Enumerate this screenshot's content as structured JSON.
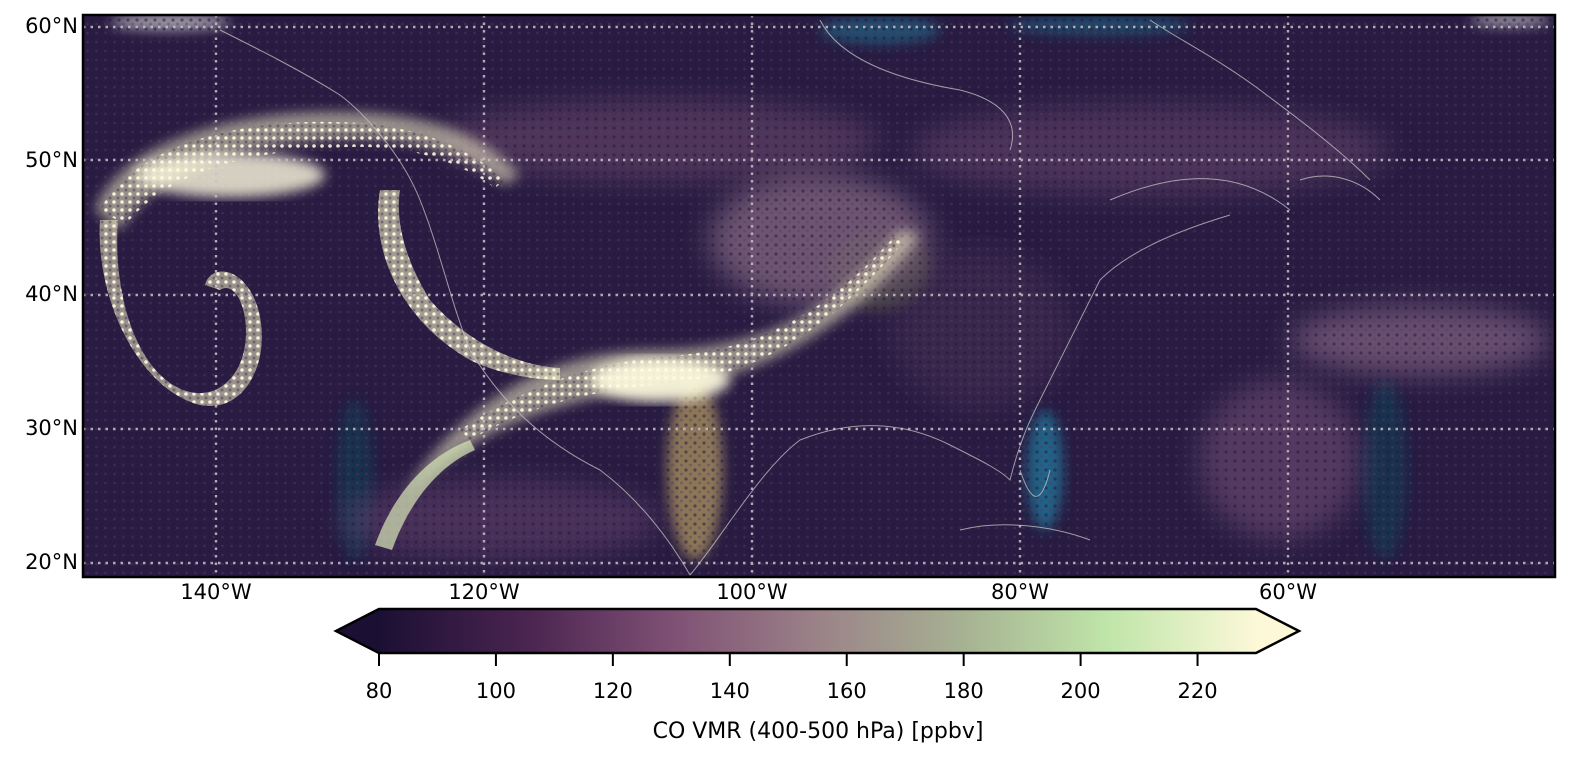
{
  "map": {
    "type": "scatter-map",
    "projection": "PlateCarree",
    "lon_range": [
      -150,
      -40
    ],
    "lat_range": [
      19,
      61
    ],
    "background": "satellite-imagery",
    "gridlines": "dotted",
    "lat_ticks": [
      {
        "value": 60,
        "label": "60°N"
      },
      {
        "value": 50,
        "label": "50°N"
      },
      {
        "value": 40,
        "label": "40°N"
      },
      {
        "value": 30,
        "label": "30°N"
      },
      {
        "value": 20,
        "label": "20°N"
      }
    ],
    "lon_ticks": [
      {
        "value": -140,
        "label": "140°W"
      },
      {
        "value": -120,
        "label": "120°W"
      },
      {
        "value": -100,
        "label": "100°W"
      },
      {
        "value": -80,
        "label": "80°W"
      },
      {
        "value": -60,
        "label": "60°W"
      }
    ]
  },
  "chart_data": {
    "type": "heatmap",
    "variable": "CO VMR (400-500 hPa) [ppbv]",
    "colormap": "cubehelix-like (dark purple → pale yellow)",
    "colors": [
      "#1c0f34",
      "#4a2550",
      "#7e4f74",
      "#9b8288",
      "#a7b393",
      "#bfe5a9",
      "#fcf8d8"
    ],
    "vmin": 80,
    "vmax": 230,
    "extend": "both",
    "colorbar_ticks": [
      80,
      100,
      120,
      140,
      160,
      180,
      200,
      220
    ],
    "plume_features": [
      {
        "description": "high CO plume core",
        "lon": -103,
        "lat": 33,
        "value": 220
      },
      {
        "description": "high CO arc offshore",
        "lon": -138,
        "lat": 50,
        "value": 220
      },
      {
        "description": "recirculating eddy",
        "lon": -142,
        "lat": 37,
        "value": 215
      },
      {
        "description": "elevated band",
        "lon": -93,
        "lat": 40,
        "value": 140
      },
      {
        "description": "elevated band east Atlantic",
        "lon": -50,
        "lat": 27,
        "value": 130
      }
    ]
  },
  "colorbar": {
    "title": "CO VMR (400-500 hPa) [ppbv]",
    "tick_labels": [
      "80",
      "100",
      "120",
      "140",
      "160",
      "180",
      "200",
      "220"
    ]
  }
}
